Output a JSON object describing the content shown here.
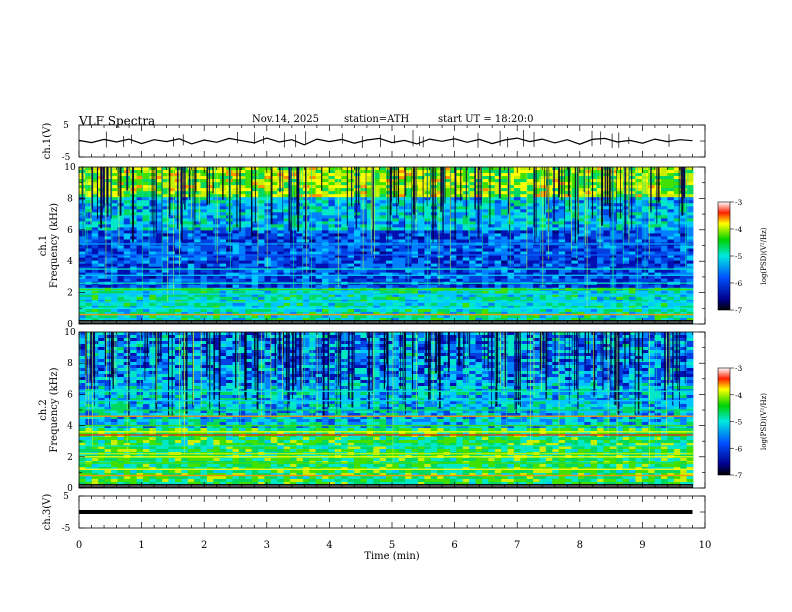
{
  "header": {
    "title": "VLF Spectra",
    "date": "Nov.14, 2025",
    "station": "station=ATH",
    "start": "start UT = 18:20:0"
  },
  "chart_data": [
    {
      "type": "line",
      "panel": "ch1-waveform",
      "title": "",
      "ylabel": "ch.1(V)",
      "xlabel": "",
      "ylim": [
        -5,
        5
      ],
      "y_ticks": [
        "5",
        "-5"
      ],
      "xlim": [
        0,
        10
      ],
      "series": [
        {
          "x": [
            0,
            0.2,
            0.4,
            0.6,
            0.8,
            1.0,
            1.2,
            1.4,
            1.6,
            1.8,
            2.0,
            2.2,
            2.4,
            2.6,
            2.8,
            3.0,
            3.2,
            3.4,
            3.6,
            3.8,
            4.0,
            4.2,
            4.4,
            4.6,
            4.8,
            5.0,
            5.2,
            5.4,
            5.6,
            5.8,
            6.0,
            6.2,
            6.4,
            6.6,
            6.8,
            7.0,
            7.2,
            7.4,
            7.6,
            7.8,
            8.0,
            8.2,
            8.4,
            8.6,
            8.8,
            9.0,
            9.2,
            9.4,
            9.6,
            9.8
          ],
          "y": [
            0.2,
            -0.5,
            0.5,
            -0.3,
            0.6,
            -0.8,
            0.4,
            -0.2,
            0.7,
            -0.9,
            0.3,
            -0.4,
            0.8,
            0.1,
            -0.6,
            0.9,
            -0.3,
            0.4,
            -1.2,
            0.6,
            -0.2,
            0.5,
            -0.7,
            0.3,
            0.8,
            -0.5,
            0.2,
            -0.9,
            0.6,
            -0.1,
            0.7,
            -0.4,
            0.5,
            -0.8,
            0.3,
            0.9,
            -0.2,
            0.6,
            -0.6,
            0.4,
            -1.0,
            0.5,
            0.8,
            -0.3,
            0.2,
            -0.7,
            0.6,
            -0.2,
            0.4,
            0.1
          ]
        }
      ]
    },
    {
      "type": "heatmap",
      "panel": "ch1-spectrogram",
      "title": "",
      "ylabel": "ch.1 Frequency (kHz)",
      "xlabel": "",
      "ylim": [
        0,
        10
      ],
      "y_ticks": [
        "0",
        "2",
        "4",
        "6",
        "8",
        "10"
      ],
      "xlim": [
        0,
        10
      ],
      "colorbar": {
        "label": "log(PSD)(V²/Hz)",
        "range": [
          -7,
          -3
        ],
        "ticks": [
          "-3",
          "-4",
          "-5",
          "-6",
          "-7"
        ]
      }
    },
    {
      "type": "heatmap",
      "panel": "ch2-spectrogram",
      "title": "",
      "ylabel": "ch.2 Frequency (kHz)",
      "xlabel": "",
      "ylim": [
        0,
        10
      ],
      "y_ticks": [
        "0",
        "2",
        "4",
        "6",
        "8",
        "10"
      ],
      "xlim": [
        0,
        10
      ],
      "colorbar": {
        "label": "log(PSD)(V²/Hz)",
        "range": [
          -7,
          -3
        ],
        "ticks": [
          "-3",
          "-4",
          "-5",
          "-6",
          "-7"
        ]
      }
    },
    {
      "type": "line",
      "panel": "ch3-waveform",
      "title": "",
      "ylabel": "ch.3(V)",
      "xlabel": "Time (min)",
      "ylim": [
        -5,
        5
      ],
      "y_ticks": [
        "5",
        "-5"
      ],
      "xlim": [
        0,
        10
      ],
      "x_ticks": [
        "0",
        "1",
        "2",
        "3",
        "4",
        "5",
        "6",
        "7",
        "8",
        "9",
        "10"
      ],
      "series": [
        {
          "x": [
            0,
            9.8
          ],
          "y": [
            0,
            0
          ]
        }
      ]
    }
  ]
}
